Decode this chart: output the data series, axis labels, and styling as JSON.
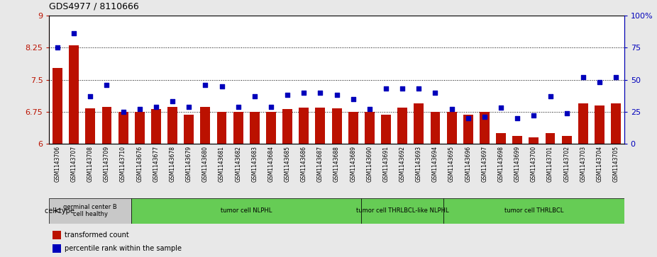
{
  "title": "GDS4977 / 8110666",
  "samples": [
    "GSM1143706",
    "GSM1143707",
    "GSM1143708",
    "GSM1143709",
    "GSM1143710",
    "GSM1143676",
    "GSM1143677",
    "GSM1143678",
    "GSM1143679",
    "GSM1143680",
    "GSM1143681",
    "GSM1143682",
    "GSM1143683",
    "GSM1143684",
    "GSM1143685",
    "GSM1143686",
    "GSM1143687",
    "GSM1143688",
    "GSM1143689",
    "GSM1143690",
    "GSM1143691",
    "GSM1143692",
    "GSM1143693",
    "GSM1143694",
    "GSM1143695",
    "GSM1143696",
    "GSM1143697",
    "GSM1143698",
    "GSM1143699",
    "GSM1143700",
    "GSM1143701",
    "GSM1143702",
    "GSM1143703",
    "GSM1143704",
    "GSM1143705"
  ],
  "bar_values": [
    7.78,
    8.31,
    6.83,
    6.87,
    6.75,
    6.75,
    6.81,
    6.87,
    6.68,
    6.87,
    6.75,
    6.75,
    6.75,
    6.75,
    6.82,
    6.85,
    6.85,
    6.83,
    6.75,
    6.75,
    6.68,
    6.85,
    6.95,
    6.75,
    6.75,
    6.68,
    6.75,
    6.25,
    6.18,
    6.16,
    6.25,
    6.18,
    6.95,
    6.9,
    6.95
  ],
  "percentile_values": [
    75,
    86,
    37,
    46,
    25,
    27,
    29,
    33,
    29,
    46,
    45,
    29,
    37,
    29,
    38,
    40,
    40,
    38,
    35,
    27,
    43,
    43,
    43,
    40,
    27,
    20,
    21,
    28,
    20,
    22,
    37,
    24,
    52,
    48,
    52
  ],
  "group_boundaries": [
    0,
    5,
    19,
    24,
    35
  ],
  "group_labels": [
    "germinal center B\ncell healthy",
    "tumor cell NLPHL",
    "tumor cell THRLBCL-like NLPHL",
    "tumor cell THRLBCL"
  ],
  "group_bg_colors": [
    "#C8C8C8",
    "#66CC55",
    "#66CC55",
    "#66CC55"
  ],
  "ylim_left": [
    6,
    9
  ],
  "ylim_right": [
    0,
    100
  ],
  "yticks_left": [
    6,
    6.75,
    7.5,
    8.25,
    9
  ],
  "yticks_right": [
    0,
    25,
    50,
    75,
    100
  ],
  "ytick_labels_left": [
    "6",
    "6.75",
    "7.5",
    "8.25",
    "9"
  ],
  "ytick_labels_right": [
    "0",
    "25",
    "50",
    "75",
    "100%"
  ],
  "bar_color": "#BB1100",
  "dot_color": "#0000BB",
  "bg_color": "#C8C8C8",
  "plot_bg": "#FFFFFF",
  "legend_bar_label": "transformed count",
  "legend_dot_label": "percentile rank within the sample",
  "cell_type_label": "cell type"
}
